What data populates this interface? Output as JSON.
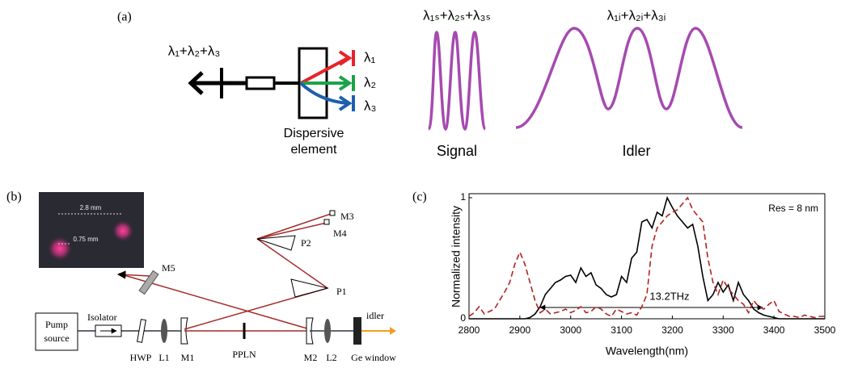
{
  "panel_a": {
    "label": "(a)",
    "input_label": "λ₁+λ₂+λ₃",
    "outputs": [
      "λ₁",
      "λ₂",
      "λ₃"
    ],
    "element_label": [
      "Dispersive",
      "element"
    ],
    "signal_title": "λ₁ₛ+λ₂ₛ+λ₃ₛ",
    "signal_label": "Signal",
    "idler_title": "λ₁ᵢ+λ₂ᵢ+λ₃ᵢ",
    "idler_label": "Idler"
  },
  "panel_b": {
    "label": "(b)",
    "inset_labels": [
      "2.8 mm",
      "0.75 mm"
    ],
    "pump_source": [
      "Pump",
      "source"
    ],
    "components": {
      "isolator": "Isolator",
      "hwp": "HWP",
      "l1": "L1",
      "m1": "M1",
      "ppln": "PPLN",
      "m2": "M2",
      "l2": "L2",
      "ge_window": "Ge window",
      "idler": "idler",
      "m3": "M3",
      "m4": "M4",
      "p2": "P2",
      "m5": "M5",
      "p1": "P1"
    }
  },
  "chart_data": {
    "type": "line",
    "label": "(c)",
    "ylabel": "Normalized intensity",
    "xlabel": "Wavelength(nm)",
    "annotations": [
      "Res = 8 nm",
      "13.2THz"
    ],
    "x": [
      2800,
      2810,
      2820,
      2830,
      2840,
      2850,
      2860,
      2870,
      2880,
      2890,
      2900,
      2910,
      2920,
      2930,
      2940,
      2950,
      2960,
      2970,
      2980,
      2990,
      3000,
      3010,
      3020,
      3030,
      3040,
      3050,
      3060,
      3070,
      3080,
      3090,
      3100,
      3110,
      3120,
      3130,
      3140,
      3150,
      3160,
      3170,
      3180,
      3190,
      3200,
      3210,
      3220,
      3230,
      3240,
      3250,
      3260,
      3270,
      3280,
      3290,
      3300,
      3310,
      3320,
      3330,
      3340,
      3350,
      3360,
      3370,
      3380,
      3390,
      3400,
      3410,
      3420,
      3430,
      3440,
      3450,
      3460,
      3470,
      3480,
      3490,
      3500
    ],
    "series": [
      {
        "color": "#000000",
        "line_style": "solid",
        "values": [
          0,
          0,
          0,
          0,
          0,
          0,
          0,
          0,
          0,
          0,
          0,
          0,
          0.01,
          0.04,
          0.1,
          0.2,
          0.25,
          0.3,
          0.32,
          0.35,
          0.36,
          0.3,
          0.42,
          0.35,
          0.38,
          0.28,
          0.25,
          0.2,
          0.18,
          0.2,
          0.35,
          0.3,
          0.5,
          0.55,
          0.8,
          0.82,
          0.75,
          0.88,
          0.85,
          1.0,
          0.92,
          0.85,
          0.8,
          0.75,
          0.78,
          0.6,
          0.35,
          0.15,
          0.2,
          0.3,
          0.22,
          0.28,
          0.15,
          0.3,
          0.2,
          0.15,
          0.08,
          0.05,
          0.03,
          0.02,
          0.01,
          0,
          0,
          0,
          0,
          0,
          0,
          0,
          0,
          0,
          0
        ]
      },
      {
        "color": "#b22222",
        "line_style": "dashed",
        "values": [
          0.02,
          0.05,
          0.1,
          0.04,
          0.06,
          0.08,
          0.15,
          0.22,
          0.3,
          0.45,
          0.55,
          0.45,
          0.3,
          0.15,
          0.05,
          0.08,
          0.04,
          0.05,
          0.06,
          0.08,
          0.05,
          0.07,
          0.1,
          0.05,
          0.06,
          0.1,
          0.08,
          0.04,
          0.02,
          0.08,
          0.06,
          0.04,
          0.05,
          0.03,
          0.1,
          0.2,
          0.6,
          0.75,
          0.8,
          0.85,
          0.88,
          0.9,
          0.95,
          1.0,
          0.9,
          0.85,
          0.8,
          0.5,
          0.3,
          0.2,
          0.32,
          0.25,
          0.2,
          0.15,
          0.12,
          0.05,
          0.15,
          0.1,
          0.08,
          0.12,
          0.15,
          0.06,
          0.04,
          0.02,
          0.02,
          0.01,
          0.03,
          0.02,
          0.01,
          0.02,
          0.02
        ]
      }
    ],
    "xlim": [
      2800,
      3500
    ],
    "ylim": [
      0,
      1
    ],
    "xticks": [
      2800,
      2900,
      3000,
      3100,
      3200,
      3300,
      3400,
      3500
    ],
    "yticks": [
      0,
      1
    ]
  }
}
